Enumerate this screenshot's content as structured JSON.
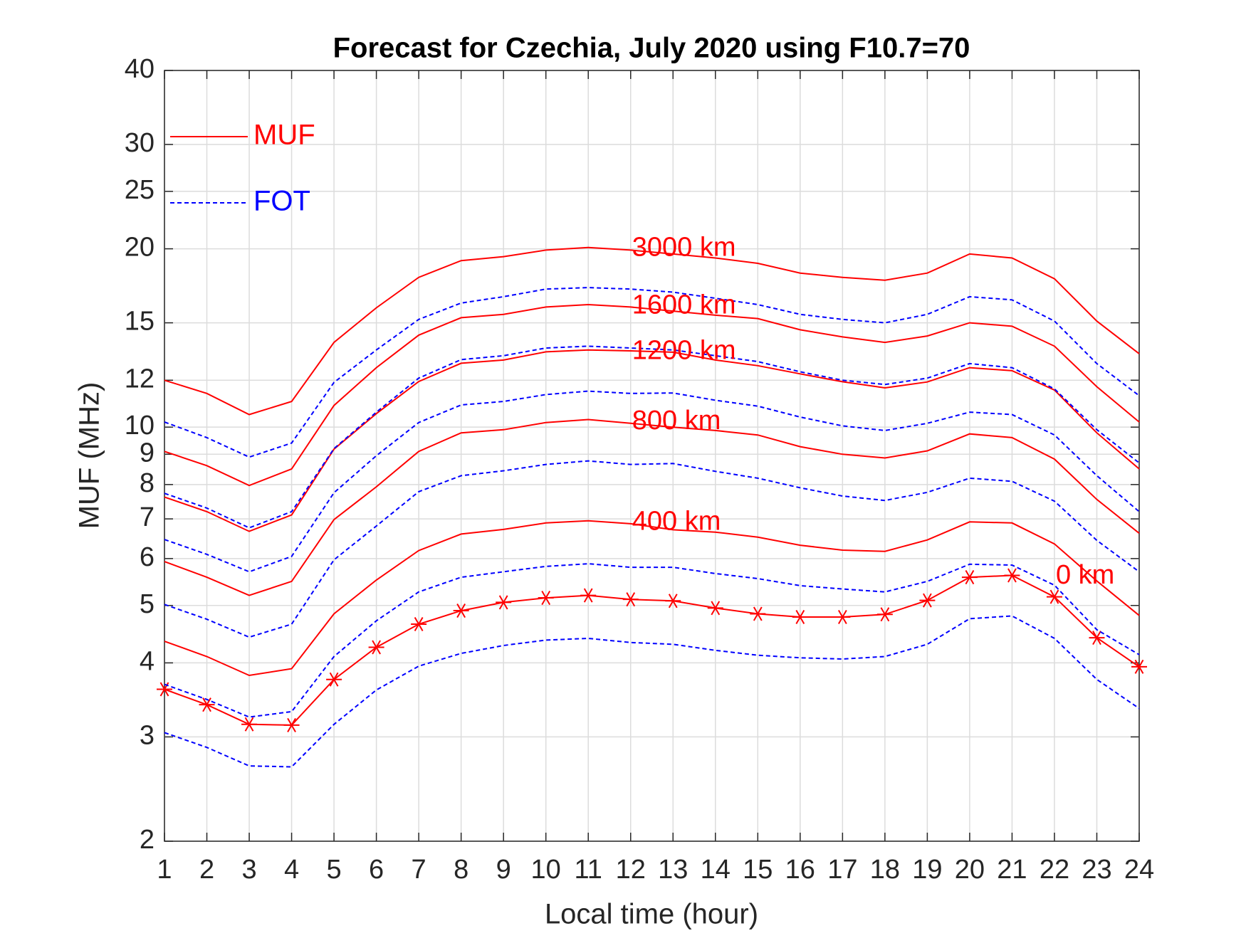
{
  "chart_data": {
    "type": "line",
    "title": "Forecast for Czechia, July 2020 using F10.7=70",
    "xlabel": "Local time (hour)",
    "ylabel": "MUF (MHz)",
    "x": [
      1,
      2,
      3,
      4,
      5,
      6,
      7,
      8,
      9,
      10,
      11,
      12,
      13,
      14,
      15,
      16,
      17,
      18,
      19,
      20,
      21,
      22,
      23,
      24
    ],
    "xlim": [
      1,
      24
    ],
    "xticks": [
      1,
      2,
      3,
      4,
      5,
      6,
      7,
      8,
      9,
      10,
      11,
      12,
      13,
      14,
      15,
      16,
      17,
      18,
      19,
      20,
      21,
      22,
      23,
      24
    ],
    "ylim": [
      2,
      40
    ],
    "yticks": [
      2,
      3,
      4,
      5,
      6,
      7,
      8,
      9,
      10,
      12,
      15,
      20,
      25,
      30,
      40
    ],
    "log_y": true,
    "grid": true,
    "legend": [
      {
        "label": "MUF",
        "color": "#ff0000",
        "dashed": false
      },
      {
        "label": "FOT",
        "color": "#0000ff",
        "dashed": true
      }
    ],
    "series": [
      {
        "color": "#ff0000",
        "dashed": false,
        "marker": "asterisk",
        "values": [
          3.61,
          3.4,
          3.15,
          3.14,
          3.75,
          4.25,
          4.65,
          4.9,
          5.06,
          5.15,
          5.2,
          5.12,
          5.09,
          4.95,
          4.84,
          4.78,
          4.78,
          4.83,
          5.1,
          5.58,
          5.62,
          5.17,
          4.41,
          3.94
        ]
      },
      {
        "color": "#0000ff",
        "dashed": true,
        "values": [
          3.05,
          2.88,
          2.68,
          2.67,
          3.15,
          3.6,
          3.95,
          4.15,
          4.28,
          4.37,
          4.4,
          4.33,
          4.3,
          4.2,
          4.12,
          4.08,
          4.06,
          4.1,
          4.3,
          4.75,
          4.8,
          4.4,
          3.75,
          3.35
        ]
      },
      {
        "color": "#ff0000",
        "dashed": false,
        "values": [
          4.35,
          4.1,
          3.81,
          3.91,
          4.84,
          5.52,
          6.19,
          6.6,
          6.72,
          6.89,
          6.95,
          6.87,
          6.71,
          6.65,
          6.52,
          6.32,
          6.2,
          6.17,
          6.45,
          6.92,
          6.89,
          6.35,
          5.5,
          4.81
        ]
      },
      {
        "color": "#0000ff",
        "dashed": true,
        "values": [
          3.68,
          3.47,
          3.24,
          3.31,
          4.1,
          4.71,
          5.27,
          5.58,
          5.7,
          5.82,
          5.88,
          5.8,
          5.8,
          5.66,
          5.55,
          5.4,
          5.33,
          5.27,
          5.49,
          5.87,
          5.85,
          5.41,
          4.55,
          4.13
        ]
      },
      {
        "color": "#ff0000",
        "dashed": false,
        "values": [
          5.93,
          5.58,
          5.2,
          5.49,
          6.98,
          7.93,
          9.1,
          9.78,
          9.9,
          10.18,
          10.3,
          10.15,
          10.0,
          9.87,
          9.7,
          9.27,
          9.0,
          8.87,
          9.12,
          9.74,
          9.6,
          8.83,
          7.55,
          6.62
        ]
      },
      {
        "color": "#0000ff",
        "dashed": true,
        "values": [
          5.02,
          4.74,
          4.42,
          4.65,
          5.97,
          6.81,
          7.78,
          8.28,
          8.44,
          8.65,
          8.77,
          8.65,
          8.68,
          8.42,
          8.2,
          7.9,
          7.65,
          7.52,
          7.76,
          8.2,
          8.1,
          7.5,
          6.44,
          5.7
        ]
      },
      {
        "color": "#ff0000",
        "dashed": false,
        "values": [
          7.62,
          7.2,
          6.67,
          7.11,
          9.18,
          10.54,
          11.94,
          12.82,
          12.98,
          13.4,
          13.5,
          13.45,
          13.38,
          12.98,
          12.7,
          12.3,
          11.93,
          11.65,
          11.92,
          12.6,
          12.45,
          11.55,
          9.78,
          8.5
        ]
      },
      {
        "color": "#0000ff",
        "dashed": true,
        "values": [
          6.46,
          6.1,
          5.7,
          6.05,
          7.75,
          8.95,
          10.18,
          10.9,
          11.05,
          11.35,
          11.5,
          11.4,
          11.42,
          11.1,
          10.85,
          10.4,
          10.05,
          9.87,
          10.15,
          10.6,
          10.5,
          9.7,
          8.28,
          7.2
        ]
      },
      {
        "color": "#ff0000",
        "dashed": false,
        "values": [
          9.1,
          8.61,
          7.97,
          8.5,
          10.88,
          12.6,
          14.3,
          15.3,
          15.5,
          15.95,
          16.1,
          15.95,
          15.7,
          15.45,
          15.25,
          14.6,
          14.2,
          13.9,
          14.25,
          15.0,
          14.8,
          13.7,
          11.7,
          10.2
        ]
      },
      {
        "color": "#0000ff",
        "dashed": true,
        "values": [
          7.73,
          7.3,
          6.76,
          7.2,
          9.2,
          10.6,
          12.1,
          13.0,
          13.2,
          13.6,
          13.7,
          13.6,
          13.5,
          13.2,
          12.9,
          12.4,
          12.0,
          11.8,
          12.1,
          12.8,
          12.6,
          11.6,
          9.9,
          8.7
        ]
      },
      {
        "color": "#ff0000",
        "dashed": false,
        "values": [
          12.0,
          11.4,
          10.5,
          11.05,
          13.9,
          15.9,
          17.9,
          19.1,
          19.4,
          19.9,
          20.1,
          19.9,
          19.6,
          19.3,
          18.9,
          18.2,
          17.9,
          17.7,
          18.2,
          19.6,
          19.3,
          17.8,
          15.1,
          13.3
        ]
      },
      {
        "color": "#0000ff",
        "dashed": true,
        "values": [
          10.2,
          9.6,
          8.9,
          9.4,
          11.9,
          13.5,
          15.2,
          16.2,
          16.6,
          17.1,
          17.2,
          17.1,
          16.9,
          16.5,
          16.1,
          15.5,
          15.2,
          15.0,
          15.5,
          16.6,
          16.4,
          15.1,
          12.8,
          11.3
        ]
      }
    ],
    "annotations": [
      {
        "text": "3000 km",
        "x": 12,
        "y": 20,
        "color": "#ff0000"
      },
      {
        "text": "1600 km",
        "x": 12,
        "y": 16,
        "color": "#ff0000"
      },
      {
        "text": "1200 km",
        "x": 12,
        "y": 13.4,
        "color": "#ff0000"
      },
      {
        "text": "800 km",
        "x": 12,
        "y": 10.2,
        "color": "#ff0000"
      },
      {
        "text": "400 km",
        "x": 12,
        "y": 6.9,
        "color": "#ff0000"
      },
      {
        "text": "0 km",
        "x": 22,
        "y": 5.6,
        "color": "#ff0000"
      }
    ]
  }
}
